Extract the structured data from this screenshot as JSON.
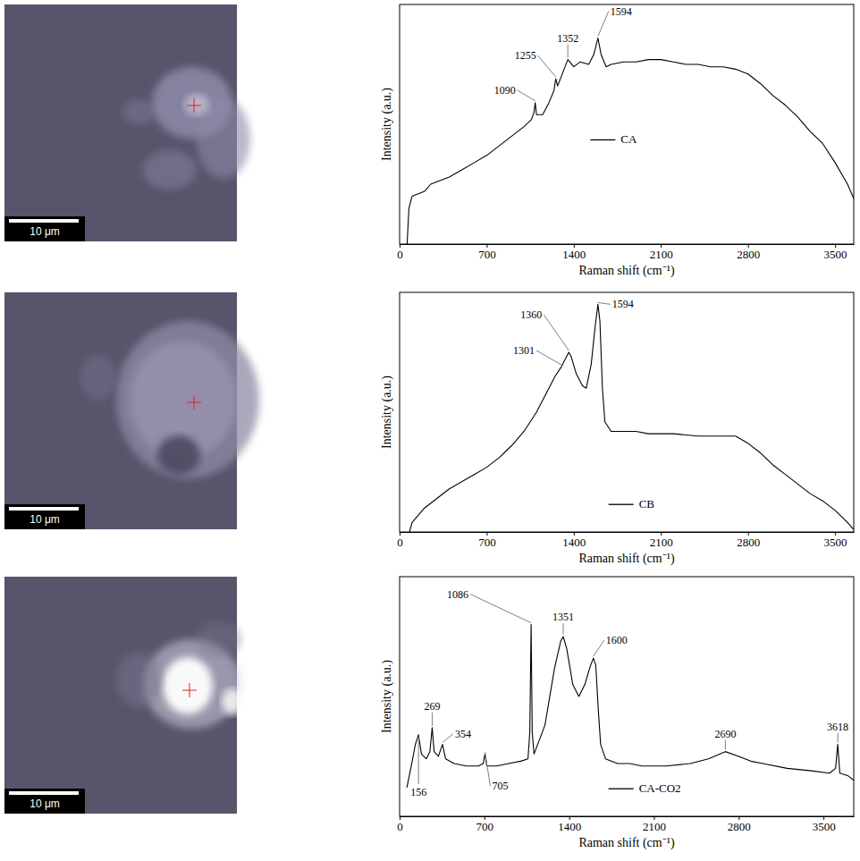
{
  "chart_data": [
    {
      "type": "line",
      "x_label": "Raman shift (cm⁻¹)",
      "y_label": "Intensity (a.u.)",
      "scale_bar_label": "10 μm",
      "x": [
        60,
        75,
        100,
        200,
        250,
        300,
        400,
        500,
        600,
        700,
        800,
        900,
        1000,
        1060,
        1080,
        1090,
        1100,
        1150,
        1200,
        1240,
        1255,
        1270,
        1300,
        1352,
        1400,
        1450,
        1520,
        1560,
        1594,
        1620,
        1660,
        1700,
        1800,
        1900,
        2000,
        2100,
        2200,
        2300,
        2400,
        2500,
        2600,
        2700,
        2800,
        2900,
        3000,
        3100,
        3200,
        3300,
        3400,
        3500,
        3600,
        3650
      ],
      "series": [
        {
          "name": "CA",
          "color": "#000000",
          "values": [
            0,
            15,
            20,
            22,
            25,
            26,
            28,
            31,
            34,
            37,
            41,
            45,
            49,
            52,
            55,
            59,
            54,
            54,
            59,
            64,
            69,
            66,
            70,
            77,
            74,
            76,
            75,
            79,
            86,
            79,
            74,
            75,
            76,
            76,
            77,
            77,
            76,
            75,
            75,
            74,
            74,
            73,
            71,
            67,
            62,
            58,
            53,
            47,
            42,
            34,
            25,
            19
          ]
        }
      ],
      "xlim": [
        0,
        3650
      ],
      "xticks": [
        0,
        700,
        1400,
        2100,
        2800,
        3500
      ],
      "ylim": [
        0,
        100
      ],
      "tick_labels": "x",
      "legend": "center",
      "annotations": [
        {
          "label": "1090",
          "x": 1090,
          "y": 59
        },
        {
          "label": "1255",
          "x": 1255,
          "y": 69
        },
        {
          "label": "1352",
          "x": 1352,
          "y": 77
        },
        {
          "label": "1594",
          "x": 1594,
          "y": 86
        }
      ]
    },
    {
      "type": "line",
      "x_label": "Raman shift (cm⁻¹)",
      "y_label": "Intensity (a.u.)",
      "scale_bar_label": "10 μm",
      "x": [
        80,
        100,
        200,
        400,
        600,
        700,
        800,
        900,
        1000,
        1100,
        1200,
        1250,
        1301,
        1340,
        1360,
        1380,
        1420,
        1470,
        1500,
        1540,
        1570,
        1594,
        1610,
        1630,
        1650,
        1700,
        1800,
        1900,
        2000,
        2200,
        2400,
        2600,
        2700,
        2800,
        2900,
        3000,
        3100,
        3200,
        3300,
        3400,
        3500,
        3600,
        3650
      ],
      "series": [
        {
          "name": "CB",
          "color": "#000000",
          "values": [
            0,
            4,
            10,
            18,
            24,
            27,
            31,
            36,
            42,
            50,
            60,
            65,
            69,
            73,
            75,
            73,
            66,
            61,
            60,
            70,
            85,
            95,
            88,
            60,
            46,
            42,
            42,
            42,
            41,
            41,
            40,
            40,
            40,
            37,
            33,
            28,
            24,
            20,
            16,
            13,
            9,
            4,
            1
          ]
        }
      ],
      "xlim": [
        0,
        3650
      ],
      "xticks": [
        0,
        700,
        1400,
        2100,
        2800,
        3500
      ],
      "ylim": [
        0,
        100
      ],
      "tick_labels": "x",
      "legend": "lower center",
      "annotations": [
        {
          "label": "1360",
          "x": 1360,
          "y": 75
        },
        {
          "label": "1301",
          "x": 1301,
          "y": 69
        },
        {
          "label": "1594",
          "x": 1594,
          "y": 95
        }
      ]
    },
    {
      "type": "line",
      "x_label": "Raman shift (cm⁻¹)",
      "y_label": "Intensity (a.u.)",
      "scale_bar_label": "10 μm",
      "x": [
        60,
        100,
        130,
        156,
        180,
        220,
        250,
        269,
        285,
        320,
        354,
        380,
        450,
        550,
        650,
        690,
        705,
        720,
        800,
        900,
        1000,
        1060,
        1075,
        1086,
        1095,
        1110,
        1200,
        1280,
        1330,
        1351,
        1380,
        1430,
        1480,
        1530,
        1570,
        1600,
        1620,
        1640,
        1660,
        1700,
        1800,
        1900,
        2000,
        2200,
        2400,
        2550,
        2690,
        2800,
        2900,
        3000,
        3200,
        3400,
        3550,
        3600,
        3618,
        3635,
        3700,
        3750
      ],
      "series": [
        {
          "name": "CA-CO2",
          "color": "#000000",
          "values": [
            12,
            22,
            30,
            34,
            26,
            24,
            27,
            37,
            27,
            25,
            30,
            24,
            22,
            21,
            21,
            22,
            26,
            21,
            21,
            22,
            23,
            24,
            35,
            80,
            35,
            26,
            38,
            62,
            73,
            75,
            70,
            55,
            50,
            55,
            62,
            66,
            63,
            45,
            30,
            24,
            22,
            22,
            21,
            21,
            22,
            24,
            27,
            25,
            23,
            22,
            20,
            19,
            18,
            20,
            30,
            18,
            17,
            15
          ]
        }
      ],
      "xlim": [
        0,
        3750
      ],
      "xticks": [
        0,
        700,
        1400,
        2100,
        2800,
        3500
      ],
      "ylim": [
        0,
        100
      ],
      "tick_labels": "x",
      "legend": "lower center",
      "annotations": [
        {
          "label": "1086",
          "x": 1086,
          "y": 80
        },
        {
          "label": "1351",
          "x": 1351,
          "y": 75
        },
        {
          "label": "1600",
          "x": 1600,
          "y": 66
        },
        {
          "label": "269",
          "x": 269,
          "y": 37
        },
        {
          "label": "156",
          "x": 156,
          "y": 34
        },
        {
          "label": "354",
          "x": 354,
          "y": 30
        },
        {
          "label": "705",
          "x": 705,
          "y": 26
        },
        {
          "label": "2690",
          "x": 2690,
          "y": 27
        },
        {
          "label": "3618",
          "x": 3618,
          "y": 30
        }
      ]
    }
  ]
}
